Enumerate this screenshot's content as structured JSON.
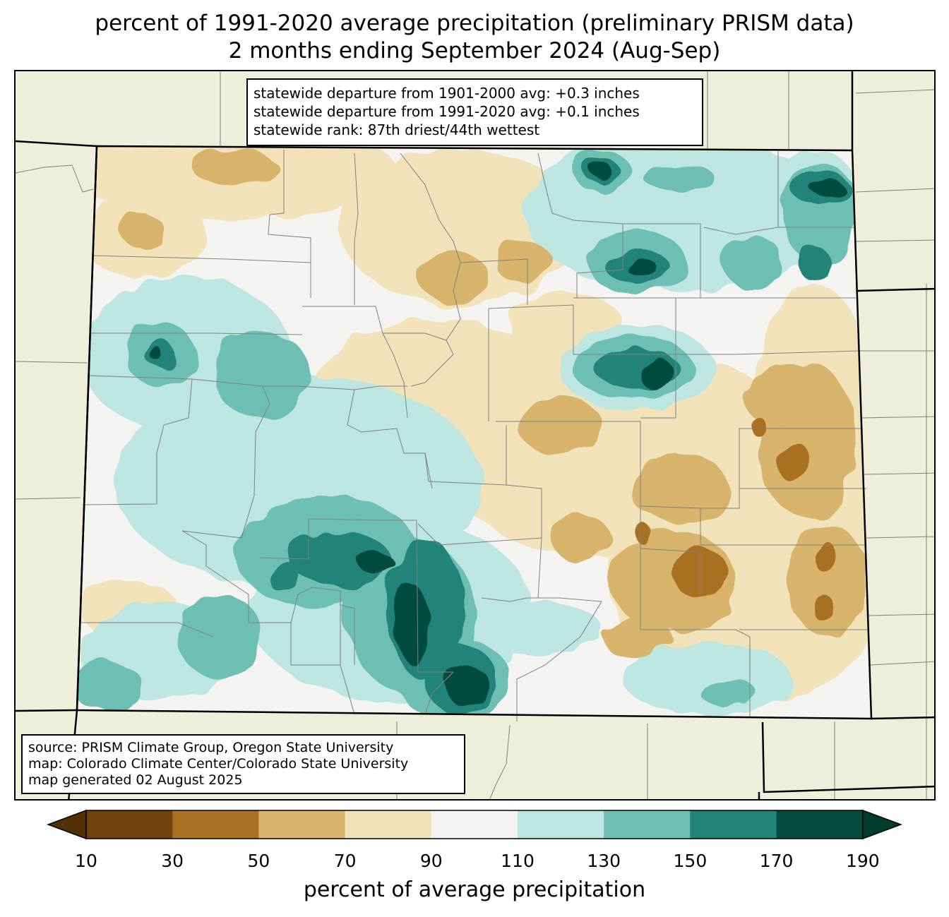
{
  "title": {
    "line1": "percent of 1991-2020 average precipitation (preliminary PRISM data)",
    "line2": "2 months ending September 2024 (Aug-Sep)"
  },
  "stats": {
    "line1": "statewide departure from 1901-2000 avg: +0.3 inches",
    "line2": "statewide departure from 1991-2020 avg: +0.1 inches",
    "line3": "statewide rank: 87th driest/44th wettest"
  },
  "source": {
    "line1": "source: PRISM Climate Group, Oregon State University",
    "line2": "map: Colorado Climate Center/Colorado State University",
    "line3": "map generated 02 August 2025"
  },
  "colorbar": {
    "label": "percent of average precipitation",
    "ticks": [
      "10",
      "30",
      "50",
      "70",
      "90",
      "110",
      "130",
      "150",
      "170",
      "190"
    ],
    "colors": [
      "#73410c",
      "#a96f24",
      "#d7b36c",
      "#f1e2b9",
      "#f3f3f0",
      "#bde6e0",
      "#6ebfb3",
      "#228479",
      "#024b3e"
    ],
    "under_color": "#543005",
    "over_color": "#003c30"
  },
  "colors": {
    "background": "#efeedb",
    "county_lines": "#808080",
    "state_lines": "#000000"
  }
}
